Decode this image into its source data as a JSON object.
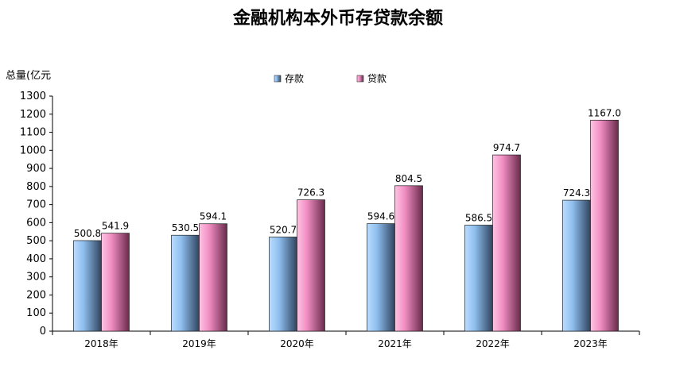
{
  "chart_data": {
    "type": "bar",
    "title": "金融机构本外币存贷款余额",
    "ylabel": "总量(亿元",
    "xlabel": "",
    "categories": [
      "2018年",
      "2019年",
      "2020年",
      "2021年",
      "2022年",
      "2023年"
    ],
    "series": [
      {
        "name": "存款",
        "values": [
          500.8,
          530.5,
          520.7,
          594.6,
          586.5,
          724.3
        ],
        "color": "#8fbfef",
        "value_labels": [
          "500.8",
          "530.5",
          "520.7",
          "594.6",
          "586.5",
          "724.3"
        ]
      },
      {
        "name": "贷款",
        "values": [
          541.9,
          594.1,
          726.3,
          804.5,
          974.7,
          1167.0
        ],
        "color": "#f28fc4",
        "value_labels": [
          "541.9",
          "594.1",
          "726.3",
          "804.5",
          "974.7",
          "1167.0"
        ]
      }
    ],
    "ylim": [
      0,
      1300
    ],
    "yticks": [
      "0",
      "100",
      "200",
      "300",
      "400",
      "500",
      "600",
      "700",
      "800",
      "900",
      "1000",
      "1100",
      "1200",
      "1300"
    ],
    "grid": false,
    "legend": "top-center"
  }
}
